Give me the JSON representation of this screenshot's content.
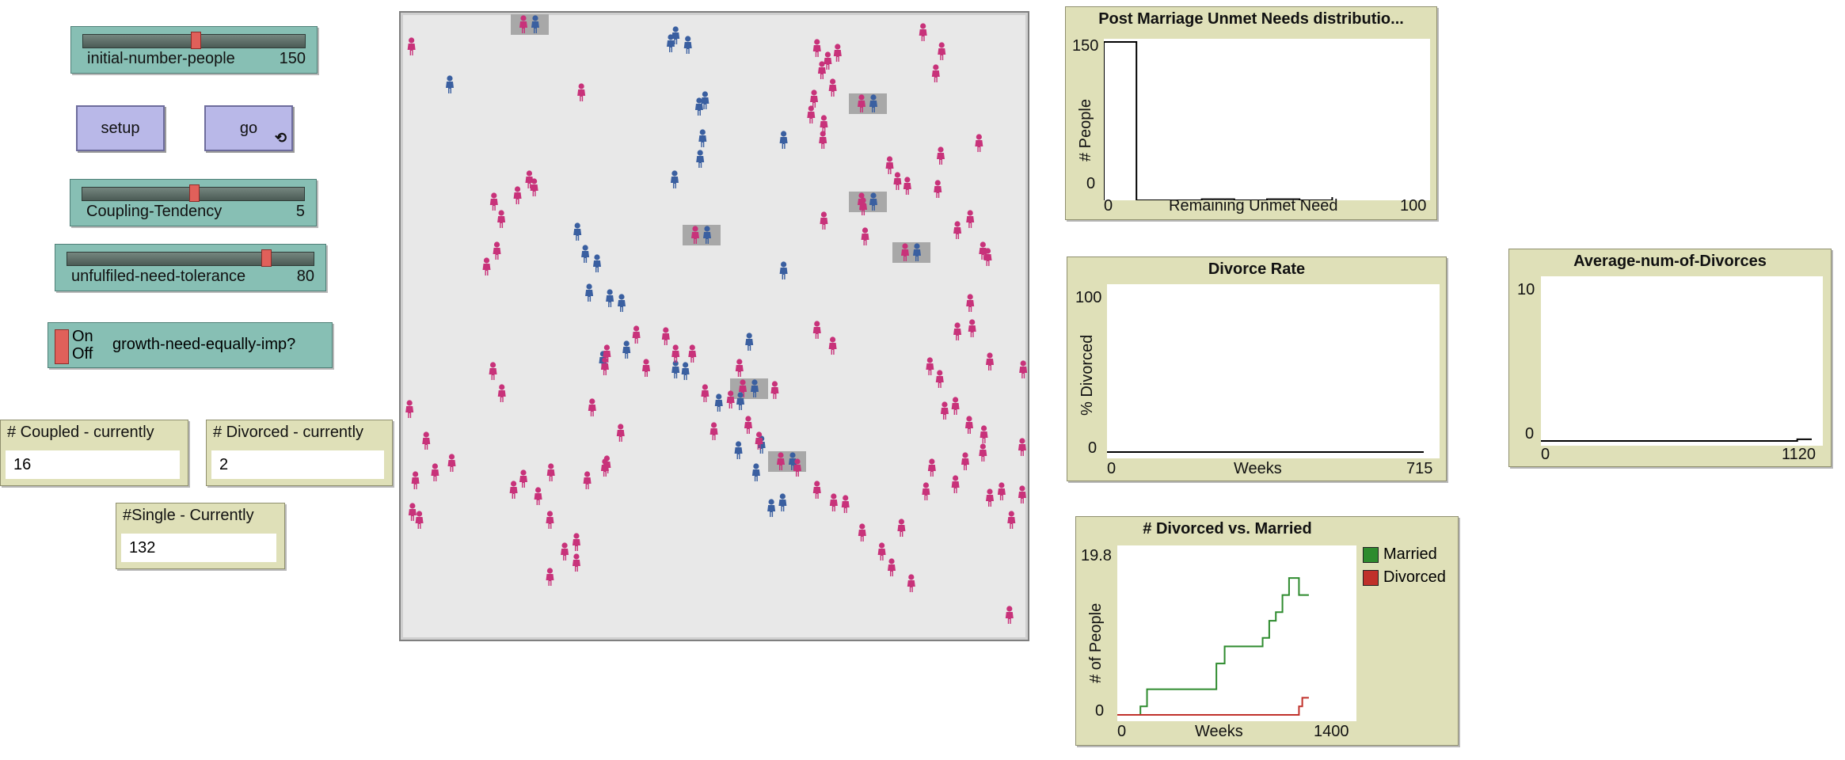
{
  "sliders": [
    {
      "label": "initial-number-people",
      "value": "150",
      "fraction": 0.5
    },
    {
      "label": "Coupling-Tendency",
      "value": "5",
      "fraction": 0.5
    },
    {
      "label": "unfulfiled-need-tolerance",
      "value": "80",
      "fraction": 0.8
    }
  ],
  "buttons": {
    "setup": "setup",
    "go": "go"
  },
  "switch": {
    "on": "On",
    "off": "Off",
    "label": "growth-need-equally-imp?"
  },
  "monitors": [
    {
      "label": "# Coupled - currently",
      "value": "16"
    },
    {
      "label": "# Divorced - currently",
      "value": "2"
    },
    {
      "label": "#Single - Currently",
      "value": "132"
    }
  ],
  "plots": {
    "unmet": {
      "title": "Post Marriage Unmet Needs distributio...",
      "ylabel": "# People",
      "xlabel": "Remaining Unmet Need",
      "xmin": "0",
      "xmax": "100",
      "ymin": "0",
      "ymax": "150"
    },
    "divorce_rate": {
      "title": "Divorce Rate",
      "ylabel": "% Divorced",
      "xlabel": "Weeks",
      "xmin": "0",
      "xmax": "715",
      "ymin": "0",
      "ymax": "100"
    },
    "avg_divorces": {
      "title": "Average-num-of-Divorces",
      "xmin": "0",
      "xmax": "1120",
      "ymin": "0",
      "ymax": "10"
    },
    "div_vs_married": {
      "title": "# Divorced vs. Married",
      "ylabel": "# of People",
      "xlabel": "Weeks",
      "xmin": "0",
      "xmax": "1400",
      "ymin": "0",
      "ymax": "19.8",
      "legend": [
        {
          "name": "Married",
          "color": "#2e8b2e"
        },
        {
          "name": "Divorced",
          "color": "#c0302a"
        }
      ]
    }
  },
  "colors": {
    "male": "#3a5fa0",
    "female": "#c8327a",
    "couple_patch": "#a8a8a8"
  },
  "chart_data": [
    {
      "type": "bar",
      "title": "Post Marriage Unmet Needs distributio...",
      "xlabel": "Remaining Unmet Need",
      "ylabel": "# People",
      "xlim": [
        0,
        100
      ],
      "ylim": [
        0,
        150
      ],
      "bins": [
        0,
        10,
        20,
        30,
        40,
        50,
        60
      ],
      "values": [
        150,
        0,
        0,
        1,
        0,
        1,
        0
      ]
    },
    {
      "type": "line",
      "title": "Divorce Rate",
      "xlabel": "Weeks",
      "ylabel": "% Divorced",
      "xlim": [
        0,
        715
      ],
      "ylim": [
        0,
        100
      ],
      "series": [
        {
          "values": [
            [
              0,
              0
            ],
            [
              715,
              0
            ]
          ]
        }
      ]
    },
    {
      "type": "line",
      "title": "Average-num-of-Divorces",
      "xlim": [
        0,
        1120
      ],
      "ylim": [
        0,
        10
      ],
      "series": [
        {
          "values": [
            [
              0,
              0
            ],
            [
              1060,
              0
            ],
            [
              1060,
              0.1
            ],
            [
              1120,
              0.1
            ]
          ]
        }
      ]
    },
    {
      "type": "line",
      "title": "# Divorced vs. Married",
      "xlabel": "Weeks",
      "ylabel": "# of People",
      "xlim": [
        0,
        1400
      ],
      "ylim": [
        0,
        19.8
      ],
      "series": [
        {
          "name": "Married",
          "values": [
            [
              0,
              0
            ],
            [
              140,
              0
            ],
            [
              140,
              1
            ],
            [
              180,
              1
            ],
            [
              180,
              3
            ],
            [
              600,
              3
            ],
            [
              600,
              6
            ],
            [
              650,
              6
            ],
            [
              650,
              8
            ],
            [
              880,
              8
            ],
            [
              880,
              9
            ],
            [
              920,
              9
            ],
            [
              920,
              11
            ],
            [
              960,
              11
            ],
            [
              960,
              12
            ],
            [
              1000,
              12
            ],
            [
              1000,
              14
            ],
            [
              1040,
              14
            ],
            [
              1040,
              16
            ],
            [
              1100,
              16
            ],
            [
              1100,
              14
            ],
            [
              1160,
              14
            ]
          ]
        },
        {
          "name": "Divorced",
          "values": [
            [
              0,
              0
            ],
            [
              1100,
              0
            ],
            [
              1100,
              1
            ],
            [
              1120,
              1
            ],
            [
              1120,
              2
            ],
            [
              1160,
              2
            ]
          ]
        }
      ]
    }
  ]
}
